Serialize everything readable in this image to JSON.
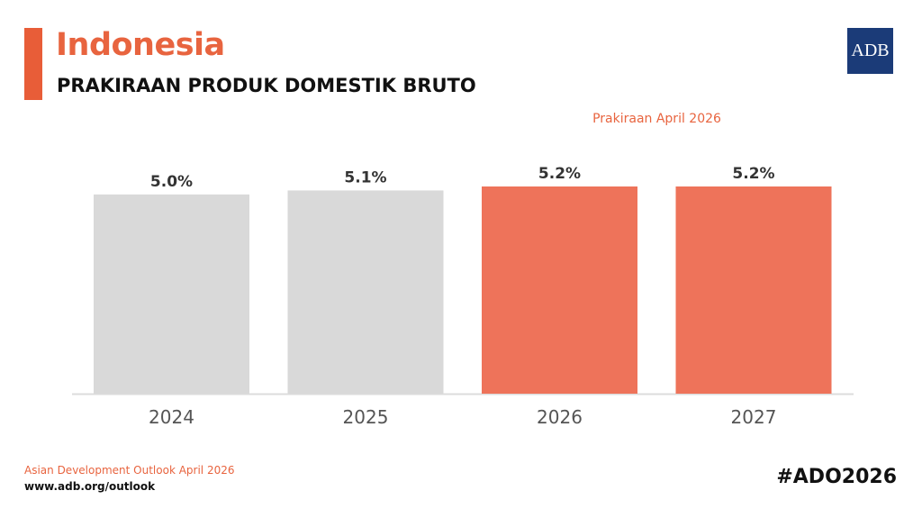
{
  "header": {
    "title": "Indonesia",
    "subtitle": "PRAKIRAAN PRODUK DOMESTIK BRUTO",
    "logo_text": "ADB"
  },
  "forecast_label": "Prakiraan April 2026",
  "colors": {
    "accent": "#e85d38",
    "actual_bar": "#d9d9d9",
    "forecast_bar": "#ee735a",
    "logo_bg": "#1b3b78"
  },
  "chart_data": {
    "type": "bar",
    "title": "PRAKIRAAN PRODUK DOMESTIK BRUTO",
    "categories": [
      "2024",
      "2025",
      "2026",
      "2027"
    ],
    "values": [
      5.0,
      5.1,
      5.2,
      5.2
    ],
    "value_labels": [
      "5.0%",
      "5.1%",
      "5.2%",
      "5.2%"
    ],
    "forecast": [
      false,
      false,
      true,
      true
    ],
    "xlabel": "",
    "ylabel": "",
    "ylim": [
      0,
      5.2
    ]
  },
  "footer": {
    "source": "Asian Development Outlook April 2026",
    "url": "www.adb.org/outlook",
    "hashtag": "#ADO2026"
  }
}
